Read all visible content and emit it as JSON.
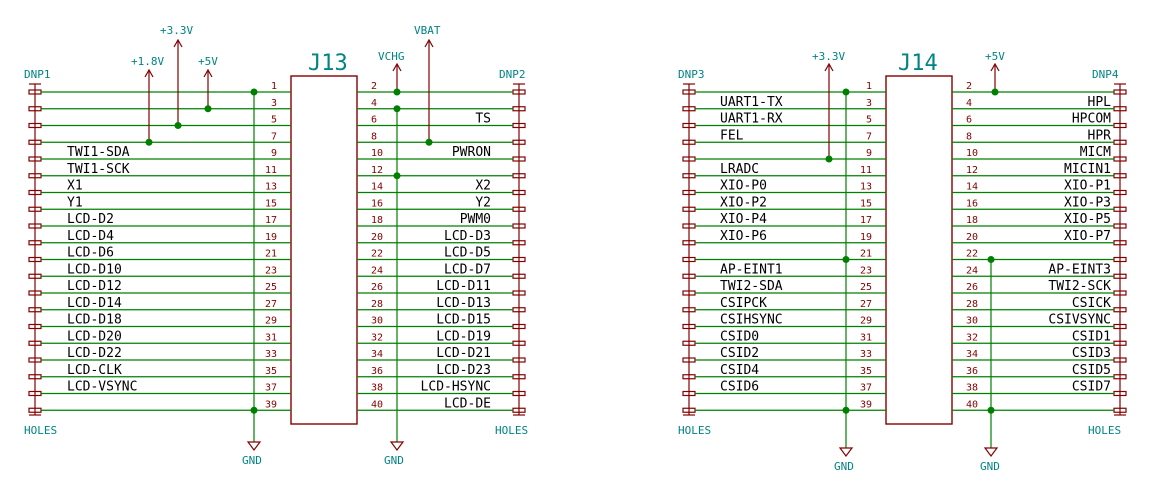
{
  "colors": {
    "wire": "#008000",
    "component": "#840000",
    "power_label": "#008484",
    "signal_text": "#000000"
  },
  "j13": {
    "title": "J13",
    "left_header": "DNP1",
    "right_header": "DNP2",
    "left_footer": "HOLES",
    "right_footer": "HOLES",
    "power": {
      "v18": "+1.8V",
      "v33": "+3.3V",
      "v5": "+5V",
      "vchg": "VCHG",
      "vbat": "VBAT",
      "gnd_left": "GND",
      "gnd_right": "GND"
    },
    "left_pins": [
      "1",
      "3",
      "5",
      "7",
      "9",
      "11",
      "13",
      "15",
      "17",
      "19",
      "21",
      "23",
      "25",
      "27",
      "29",
      "31",
      "33",
      "35",
      "37",
      "39"
    ],
    "left_signals": [
      "",
      "",
      "",
      "",
      "TWI1-SDA",
      "TWI1-SCK",
      "X1",
      "Y1",
      "LCD-D2",
      "LCD-D4",
      "LCD-D6",
      "LCD-D10",
      "LCD-D12",
      "LCD-D14",
      "LCD-D18",
      "LCD-D20",
      "LCD-D22",
      "LCD-CLK",
      "LCD-VSYNC",
      ""
    ],
    "right_pins": [
      "2",
      "4",
      "6",
      "8",
      "10",
      "12",
      "14",
      "16",
      "18",
      "20",
      "22",
      "24",
      "26",
      "28",
      "30",
      "32",
      "34",
      "36",
      "38",
      "40"
    ],
    "right_signals": [
      "",
      "",
      "TS",
      "",
      "PWRON",
      "",
      "X2",
      "Y2",
      "PWM0",
      "LCD-D3",
      "LCD-D5",
      "LCD-D7",
      "LCD-D11",
      "LCD-D13",
      "LCD-D15",
      "LCD-D19",
      "LCD-D21",
      "LCD-D23",
      "LCD-HSYNC",
      "LCD-DE"
    ]
  },
  "j14": {
    "title": "J14",
    "left_header": "DNP3",
    "right_header": "DNP4",
    "left_footer": "HOLES",
    "right_footer": "HOLES",
    "power": {
      "v33": "+3.3V",
      "v5": "+5V",
      "gnd_left": "GND",
      "gnd_right": "GND"
    },
    "left_pins": [
      "1",
      "3",
      "5",
      "7",
      "9",
      "11",
      "13",
      "15",
      "17",
      "19",
      "21",
      "23",
      "25",
      "27",
      "29",
      "31",
      "33",
      "35",
      "37",
      "39"
    ],
    "left_signals": [
      "",
      "UART1-TX",
      "UART1-RX",
      "FEL",
      "",
      "LRADC",
      "XIO-P0",
      "XIO-P2",
      "XIO-P4",
      "XIO-P6",
      "",
      "AP-EINT1",
      "TWI2-SDA",
      "CSIPCK",
      "CSIHSYNC",
      "CSID0",
      "CSID2",
      "CSID4",
      "CSID6",
      ""
    ],
    "right_pins": [
      "2",
      "4",
      "6",
      "8",
      "10",
      "12",
      "14",
      "16",
      "18",
      "20",
      "22",
      "24",
      "26",
      "28",
      "30",
      "32",
      "34",
      "36",
      "38",
      "40"
    ],
    "right_signals": [
      "",
      "HPL",
      "HPCOM",
      "HPR",
      "MICM",
      "MICIN1",
      "XIO-P1",
      "XIO-P3",
      "XIO-P5",
      "XIO-P7",
      "",
      "AP-EINT3",
      "TWI2-SCK",
      "CSICK",
      "CSIVSYNC",
      "CSID1",
      "CSID3",
      "CSID5",
      "CSID7",
      ""
    ]
  }
}
